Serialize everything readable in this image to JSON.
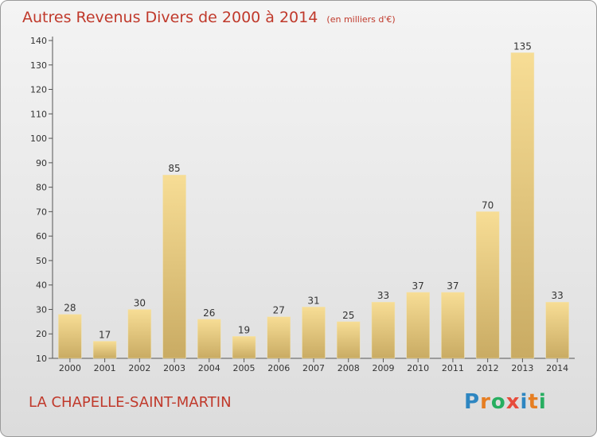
{
  "title": "Autres Revenus Divers de 2000 à 2014",
  "unit_note": "(en milliers d'€)",
  "place_name": "LA CHAPELLE-SAINT-MARTIN",
  "brand": {
    "text": "Proxiti",
    "letters": [
      {
        "ch": "P",
        "color": "#2e86c1"
      },
      {
        "ch": "r",
        "color": "#e67e22"
      },
      {
        "ch": "o",
        "color": "#27ae60"
      },
      {
        "ch": "x",
        "color": "#e74c3c"
      },
      {
        "ch": "i",
        "color": "#2e86c1"
      },
      {
        "ch": "t",
        "color": "#e67e22"
      },
      {
        "ch": "i",
        "color": "#27ae60"
      }
    ]
  },
  "colors": {
    "title": "#c0392b",
    "bar_light": "#f7dd95",
    "bar_dark": "#c9ab63"
  },
  "chart_data": {
    "type": "bar",
    "title": "Autres Revenus Divers de 2000 à 2014",
    "xlabel": "",
    "ylabel": "",
    "categories": [
      "2000",
      "2001",
      "2002",
      "2003",
      "2004",
      "2005",
      "2006",
      "2007",
      "2008",
      "2009",
      "2010",
      "2011",
      "2012",
      "2013",
      "2014"
    ],
    "values": [
      28,
      17,
      30,
      85,
      26,
      19,
      27,
      31,
      25,
      33,
      37,
      37,
      70,
      135,
      33
    ],
    "ylim": [
      10,
      140
    ],
    "yticks": [
      10,
      20,
      30,
      40,
      50,
      60,
      70,
      80,
      90,
      100,
      110,
      120,
      130,
      140
    ],
    "grid": false
  }
}
